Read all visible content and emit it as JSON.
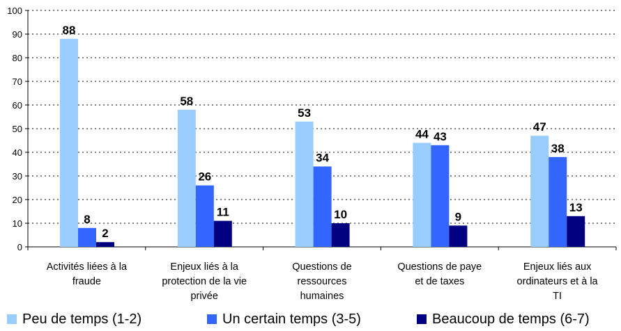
{
  "chart_data": {
    "type": "bar",
    "categories": [
      [
        "Activités liées à la",
        "fraude"
      ],
      [
        "Enjeux liés à la",
        "protection de la vie",
        "privée"
      ],
      [
        "Questions de",
        "ressources",
        "humaines"
      ],
      [
        "Questions de paye",
        "et de taxes"
      ],
      [
        "Enjeux liés aux",
        "ordinateurs et à la",
        "TI"
      ]
    ],
    "series": [
      {
        "name": "Peu de temps (1-2)",
        "color": "#99ccff",
        "values": [
          88,
          58,
          53,
          44,
          47
        ]
      },
      {
        "name": "Un certain temps (3-5)",
        "color": "#3366ff",
        "values": [
          8,
          26,
          34,
          43,
          38
        ]
      },
      {
        "name": "Beaucoup de temps (6-7)",
        "color": "#000080",
        "values": [
          2,
          11,
          10,
          9,
          13
        ]
      }
    ],
    "ylim": [
      0,
      100
    ],
    "yticks": [
      0,
      10,
      20,
      30,
      40,
      50,
      60,
      70,
      80,
      90,
      100
    ],
    "grid": true,
    "legend_position": "bottom"
  }
}
